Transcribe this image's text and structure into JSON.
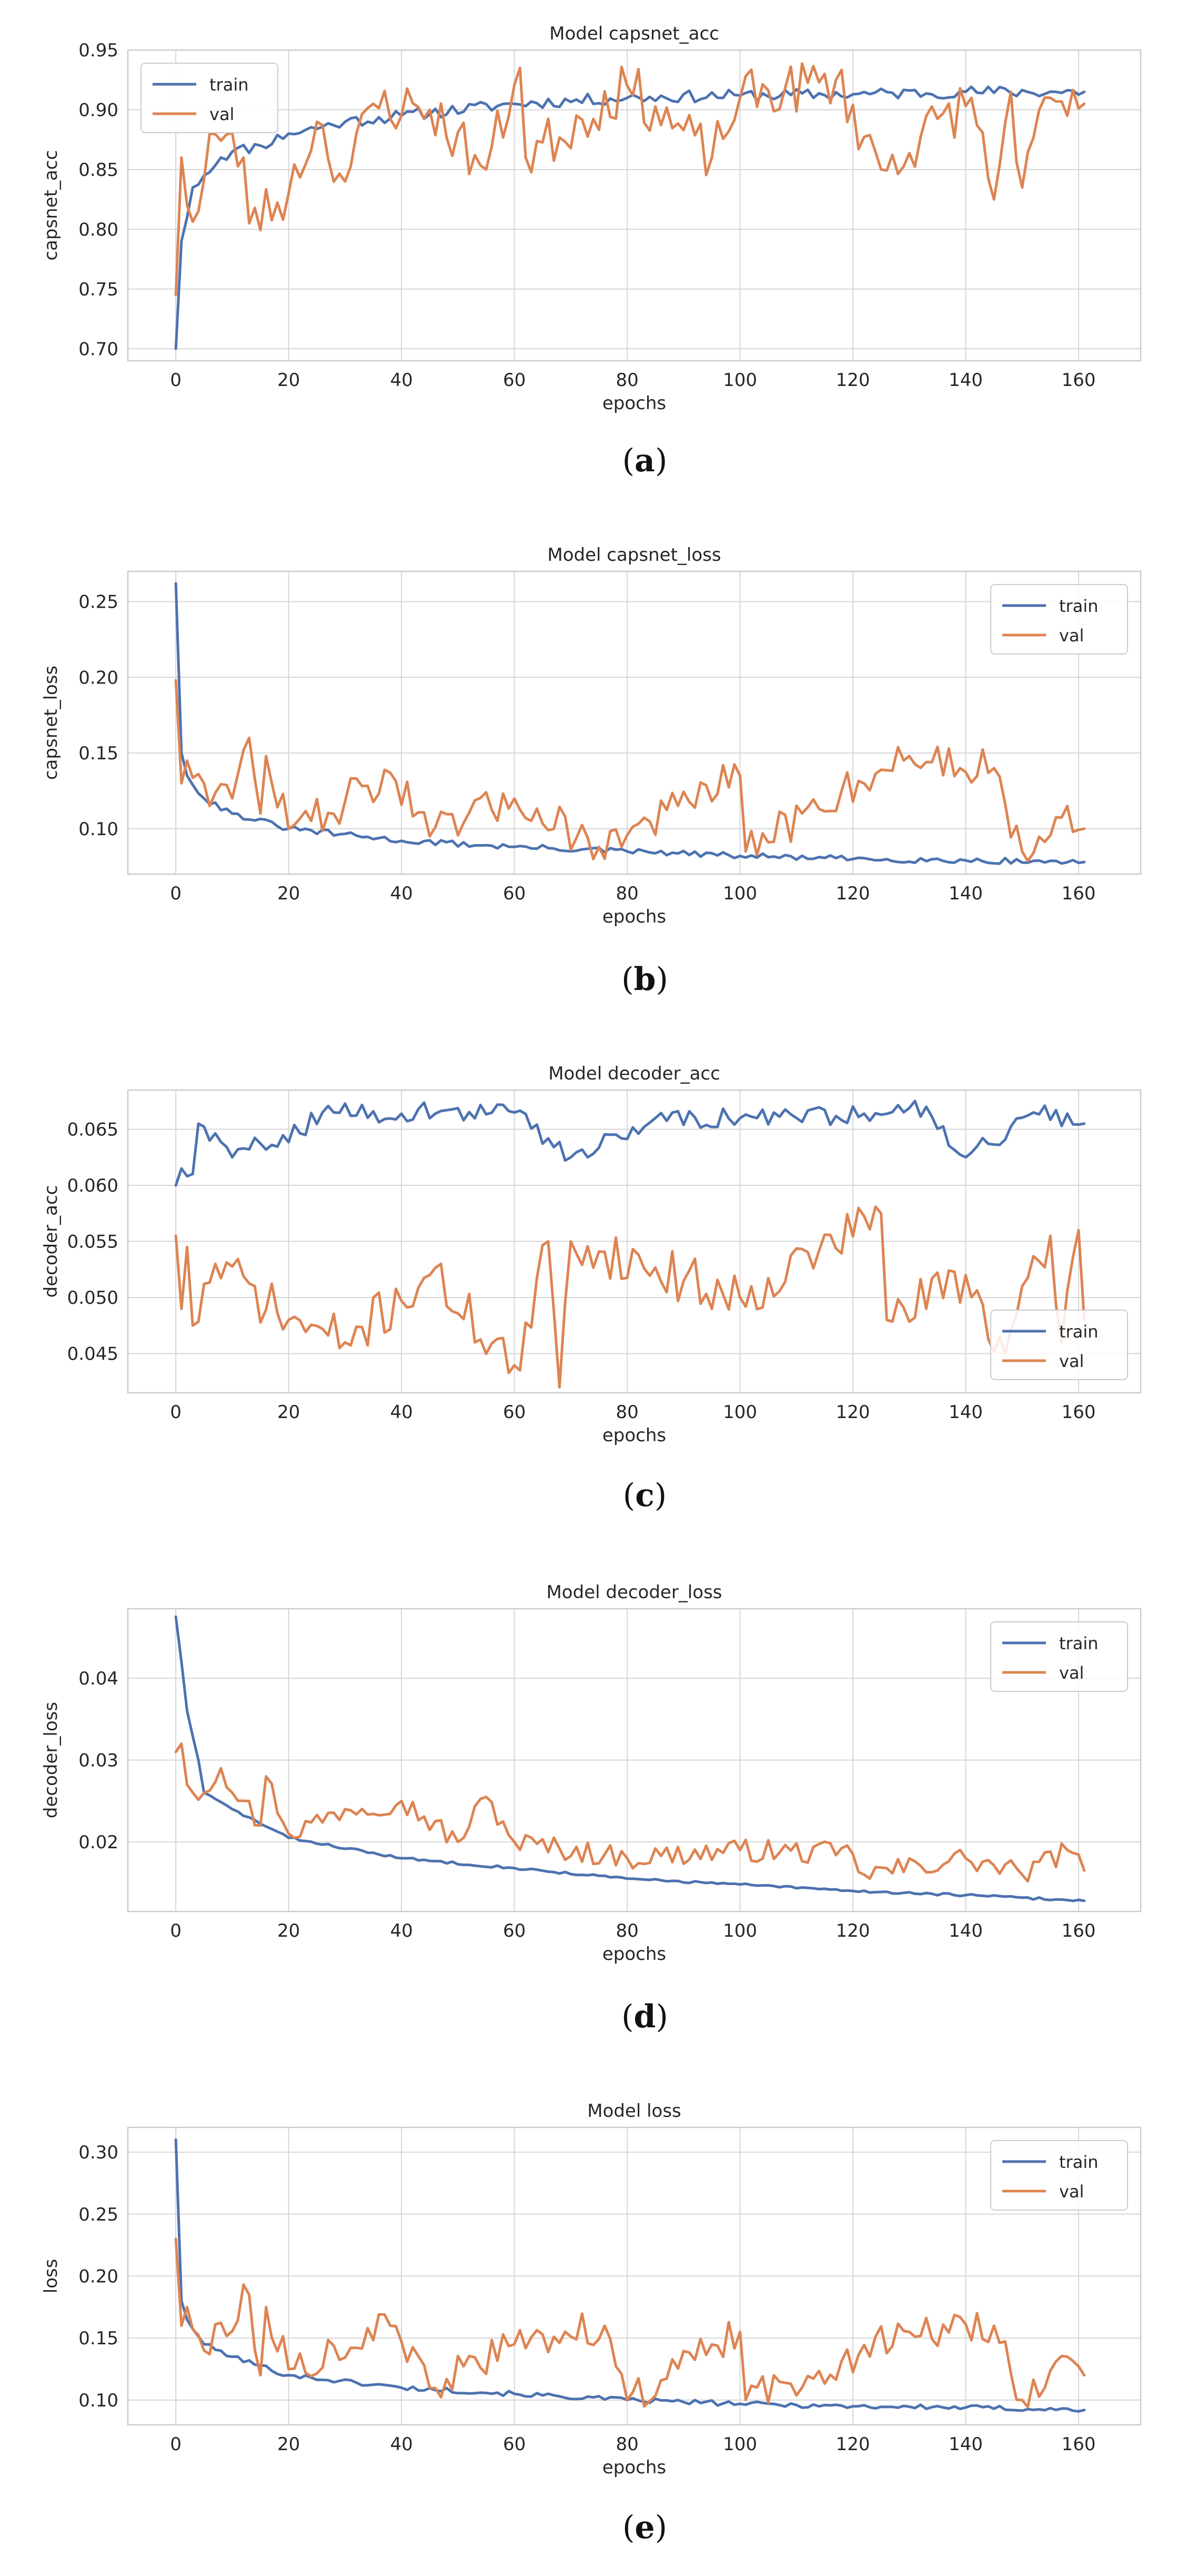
{
  "colors": {
    "train": "#4c72b0",
    "val": "#dd8452",
    "grid": "#d6d6d6",
    "frame": "#cccccc",
    "text": "#262626"
  },
  "chart_data": [
    {
      "id": "a",
      "type": "line",
      "title": "Model capsnet_acc",
      "xlabel": "epochs",
      "ylabel": "capsnet_acc",
      "caption_letter": "a",
      "xlim": [
        -8.5,
        171
      ],
      "ylim": [
        0.69,
        0.95
      ],
      "xticks": [
        0,
        20,
        40,
        60,
        80,
        100,
        120,
        140,
        160
      ],
      "xtick_labels": [
        "0",
        "20",
        "40",
        "60",
        "80",
        "100",
        "120",
        "140",
        "160"
      ],
      "yticks": [
        0.7,
        0.75,
        0.8,
        0.85,
        0.9,
        0.95
      ],
      "ytick_labels": [
        "0.70",
        "0.75",
        "0.80",
        "0.85",
        "0.90",
        "0.95"
      ],
      "legend_location": "upper left",
      "series": [
        {
          "name": "train",
          "start": 0.7,
          "end": 0.915,
          "tau": 9,
          "noise": 0.005,
          "seed": 11,
          "points": [
            [
              0,
              0.7
            ],
            [
              1,
              0.79
            ],
            [
              2,
              0.81
            ],
            [
              3,
              0.835
            ],
            [
              5,
              0.845
            ],
            [
              8,
              0.86
            ],
            [
              10,
              0.865
            ],
            [
              15,
              0.87
            ],
            [
              20,
              0.88
            ],
            [
              30,
              0.89
            ],
            [
              40,
              0.895
            ],
            [
              60,
              0.905
            ],
            [
              80,
              0.91
            ],
            [
              100,
              0.912
            ],
            [
              120,
              0.913
            ],
            [
              140,
              0.915
            ],
            [
              161,
              0.915
            ]
          ]
        },
        {
          "name": "val",
          "start": 0.745,
          "end": 0.905,
          "tau": 7,
          "noise": 0.022,
          "seed": 23,
          "points": [
            [
              0,
              0.745
            ],
            [
              1,
              0.86
            ],
            [
              2,
              0.82
            ],
            [
              4,
              0.815
            ],
            [
              6,
              0.88
            ],
            [
              12,
              0.86
            ],
            [
              13,
              0.805
            ],
            [
              20,
              0.83
            ],
            [
              25,
              0.89
            ],
            [
              30,
              0.84
            ],
            [
              35,
              0.905
            ],
            [
              45,
              0.9
            ],
            [
              55,
              0.85
            ],
            [
              61,
              0.935
            ],
            [
              62,
              0.86
            ],
            [
              80,
              0.92
            ],
            [
              95,
              0.86
            ],
            [
              100,
              0.91
            ],
            [
              117,
              0.925
            ],
            [
              125,
              0.85
            ],
            [
              141,
              0.91
            ],
            [
              145,
              0.825
            ],
            [
              148,
              0.915
            ],
            [
              150,
              0.835
            ],
            [
              155,
              0.91
            ],
            [
              158,
              0.895
            ],
            [
              161,
              0.905
            ]
          ]
        }
      ]
    },
    {
      "id": "b",
      "type": "line",
      "title": "Model capsnet_loss",
      "xlabel": "epochs",
      "ylabel": "capsnet_loss",
      "caption_letter": "b",
      "xlim": [
        -8.5,
        171
      ],
      "ylim": [
        0.07,
        0.27
      ],
      "xticks": [
        0,
        20,
        40,
        60,
        80,
        100,
        120,
        140,
        160
      ],
      "xtick_labels": [
        "0",
        "20",
        "40",
        "60",
        "80",
        "100",
        "120",
        "140",
        "160"
      ],
      "yticks": [
        0.1,
        0.15,
        0.2,
        0.25
      ],
      "ytick_labels": [
        "0.10",
        "0.15",
        "0.20",
        "0.25"
      ],
      "legend_location": "upper right",
      "series": [
        {
          "name": "train",
          "start": 0.262,
          "end": 0.078,
          "tau": 5,
          "noise": 0.002,
          "seed": 31,
          "points": [
            [
              0,
              0.262
            ],
            [
              1,
              0.15
            ],
            [
              2,
              0.135
            ],
            [
              5,
              0.12
            ],
            [
              10,
              0.11
            ],
            [
              20,
              0.1
            ],
            [
              40,
              0.092
            ],
            [
              60,
              0.088
            ],
            [
              80,
              0.085
            ],
            [
              100,
              0.082
            ],
            [
              120,
              0.08
            ],
            [
              140,
              0.079
            ],
            [
              161,
              0.078
            ]
          ]
        },
        {
          "name": "val",
          "start": 0.198,
          "end": 0.102,
          "tau": 4,
          "noise": 0.013,
          "seed": 47,
          "points": [
            [
              0,
              0.198
            ],
            [
              1,
              0.13
            ],
            [
              2,
              0.145
            ],
            [
              5,
              0.13
            ],
            [
              10,
              0.12
            ],
            [
              13,
              0.16
            ],
            [
              15,
              0.11
            ],
            [
              16,
              0.148
            ],
            [
              20,
              0.1
            ],
            [
              30,
              0.118
            ],
            [
              38,
              0.137
            ],
            [
              45,
              0.095
            ],
            [
              60,
              0.12
            ],
            [
              75,
              0.088
            ],
            [
              100,
              0.135
            ],
            [
              101,
              0.085
            ],
            [
              118,
              0.125
            ],
            [
              130,
              0.148
            ],
            [
              145,
              0.14
            ],
            [
              150,
              0.085
            ],
            [
              158,
              0.115
            ],
            [
              161,
              0.1
            ]
          ]
        }
      ]
    },
    {
      "id": "c",
      "type": "line",
      "title": "Model decoder_acc",
      "xlabel": "epochs",
      "ylabel": "decoder_acc",
      "caption_letter": "c",
      "xlim": [
        -8.5,
        171
      ],
      "ylim": [
        0.0415,
        0.0685
      ],
      "xticks": [
        0,
        20,
        40,
        60,
        80,
        100,
        120,
        140,
        160
      ],
      "xtick_labels": [
        "0",
        "20",
        "40",
        "60",
        "80",
        "100",
        "120",
        "140",
        "160"
      ],
      "yticks": [
        0.045,
        0.05,
        0.055,
        0.06,
        0.065
      ],
      "ytick_labels": [
        "0.045",
        "0.050",
        "0.055",
        "0.060",
        "0.065"
      ],
      "legend_location": "lower right",
      "series": [
        {
          "name": "train",
          "start": 0.06,
          "end": 0.0645,
          "tau": 6,
          "noise": 0.0009,
          "seed": 59,
          "points": [
            [
              0,
              0.06
            ],
            [
              1,
              0.0615
            ],
            [
              3,
              0.061
            ],
            [
              4,
              0.0655
            ],
            [
              10,
              0.0625
            ],
            [
              28,
              0.0665
            ],
            [
              60,
              0.0665
            ],
            [
              70,
              0.0625
            ],
            [
              85,
              0.066
            ],
            [
              110,
              0.066
            ],
            [
              133,
              0.067
            ],
            [
              140,
              0.0625
            ],
            [
              152,
              0.0665
            ],
            [
              161,
              0.0655
            ]
          ]
        },
        {
          "name": "val",
          "start": 0.0555,
          "end": 0.048,
          "tau": 1,
          "noise": 0.0022,
          "seed": 71,
          "points": [
            [
              0,
              0.0555
            ],
            [
              1,
              0.049
            ],
            [
              2,
              0.0545
            ],
            [
              3,
              0.0475
            ],
            [
              7,
              0.053
            ],
            [
              20,
              0.048
            ],
            [
              30,
              0.046
            ],
            [
              45,
              0.052
            ],
            [
              61,
              0.0435
            ],
            [
              66,
              0.055
            ],
            [
              68,
              0.042
            ],
            [
              70,
              0.055
            ],
            [
              100,
              0.05
            ],
            [
              125,
              0.0575
            ],
            [
              126,
              0.048
            ],
            [
              140,
              0.052
            ],
            [
              147,
              0.045
            ],
            [
              155,
              0.0555
            ],
            [
              157,
              0.046
            ],
            [
              160,
              0.056
            ],
            [
              161,
              0.048
            ]
          ]
        }
      ]
    },
    {
      "id": "d",
      "type": "line",
      "title": "Model decoder_loss",
      "xlabel": "epochs",
      "ylabel": "decoder_loss",
      "caption_letter": "d",
      "xlim": [
        -8.5,
        171
      ],
      "ylim": [
        0.0115,
        0.0485
      ],
      "xticks": [
        0,
        20,
        40,
        60,
        80,
        100,
        120,
        140,
        160
      ],
      "xtick_labels": [
        "0",
        "20",
        "40",
        "60",
        "80",
        "100",
        "120",
        "140",
        "160"
      ],
      "yticks": [
        0.02,
        0.03,
        0.04
      ],
      "ytick_labels": [
        "0.02",
        "0.03",
        "0.04"
      ],
      "legend_location": "upper right",
      "series": [
        {
          "name": "train",
          "start": 0.0475,
          "end": 0.0128,
          "tau": 5,
          "noise": 0.00015,
          "seed": 83,
          "points": [
            [
              0,
              0.0475
            ],
            [
              1,
              0.042
            ],
            [
              2,
              0.036
            ],
            [
              4,
              0.03
            ],
            [
              5,
              0.026
            ],
            [
              10,
              0.024
            ],
            [
              20,
              0.0205
            ],
            [
              40,
              0.018
            ],
            [
              60,
              0.0168
            ],
            [
              80,
              0.0155
            ],
            [
              100,
              0.0148
            ],
            [
              120,
              0.014
            ],
            [
              140,
              0.0135
            ],
            [
              161,
              0.0128
            ]
          ]
        },
        {
          "name": "val",
          "start": 0.031,
          "end": 0.0165,
          "tau": 6,
          "noise": 0.0014,
          "seed": 97,
          "points": [
            [
              0,
              0.031
            ],
            [
              1,
              0.032
            ],
            [
              2,
              0.027
            ],
            [
              5,
              0.026
            ],
            [
              8,
              0.029
            ],
            [
              15,
              0.022
            ],
            [
              16,
              0.028
            ],
            [
              20,
              0.021
            ],
            [
              30,
              0.024
            ],
            [
              40,
              0.025
            ],
            [
              50,
              0.02
            ],
            [
              55,
              0.0255
            ],
            [
              60,
              0.02
            ],
            [
              80,
              0.018
            ],
            [
              100,
              0.019
            ],
            [
              120,
              0.0185
            ],
            [
              122,
              0.016
            ],
            [
              140,
              0.018
            ],
            [
              150,
              0.016
            ],
            [
              158,
              0.019
            ],
            [
              161,
              0.0165
            ]
          ]
        }
      ]
    },
    {
      "id": "e",
      "type": "line",
      "title": "Model loss",
      "xlabel": "epochs",
      "ylabel": "loss",
      "caption_letter": "e",
      "xlim": [
        -8.5,
        171
      ],
      "ylim": [
        0.08,
        0.32
      ],
      "xticks": [
        0,
        20,
        40,
        60,
        80,
        100,
        120,
        140,
        160
      ],
      "xtick_labels": [
        "0",
        "20",
        "40",
        "60",
        "80",
        "100",
        "120",
        "140",
        "160"
      ],
      "yticks": [
        0.1,
        0.15,
        0.2,
        0.25,
        0.3
      ],
      "ytick_labels": [
        "0.10",
        "0.15",
        "0.20",
        "0.25",
        "0.30"
      ],
      "legend_location": "upper right",
      "series": [
        {
          "name": "train",
          "start": 0.31,
          "end": 0.092,
          "tau": 5,
          "noise": 0.002,
          "seed": 101,
          "points": [
            [
              0,
              0.31
            ],
            [
              1,
              0.18
            ],
            [
              2,
              0.165
            ],
            [
              5,
              0.145
            ],
            [
              10,
              0.135
            ],
            [
              20,
              0.12
            ],
            [
              40,
              0.11
            ],
            [
              60,
              0.105
            ],
            [
              80,
              0.1
            ],
            [
              100,
              0.097
            ],
            [
              120,
              0.095
            ],
            [
              140,
              0.094
            ],
            [
              161,
              0.092
            ]
          ]
        },
        {
          "name": "val",
          "start": 0.23,
          "end": 0.12,
          "tau": 4,
          "noise": 0.014,
          "seed": 113,
          "points": [
            [
              0,
              0.23
            ],
            [
              1,
              0.16
            ],
            [
              2,
              0.175
            ],
            [
              5,
              0.14
            ],
            [
              13,
              0.185
            ],
            [
              15,
              0.12
            ],
            [
              16,
              0.175
            ],
            [
              20,
              0.125
            ],
            [
              38,
              0.16
            ],
            [
              45,
              0.11
            ],
            [
              60,
              0.145
            ],
            [
              76,
              0.16
            ],
            [
              80,
              0.1
            ],
            [
              100,
              0.155
            ],
            [
              101,
              0.1
            ],
            [
              130,
              0.155
            ],
            [
              145,
              0.16
            ],
            [
              150,
              0.1
            ],
            [
              158,
              0.135
            ],
            [
              161,
              0.12
            ]
          ]
        }
      ]
    }
  ]
}
